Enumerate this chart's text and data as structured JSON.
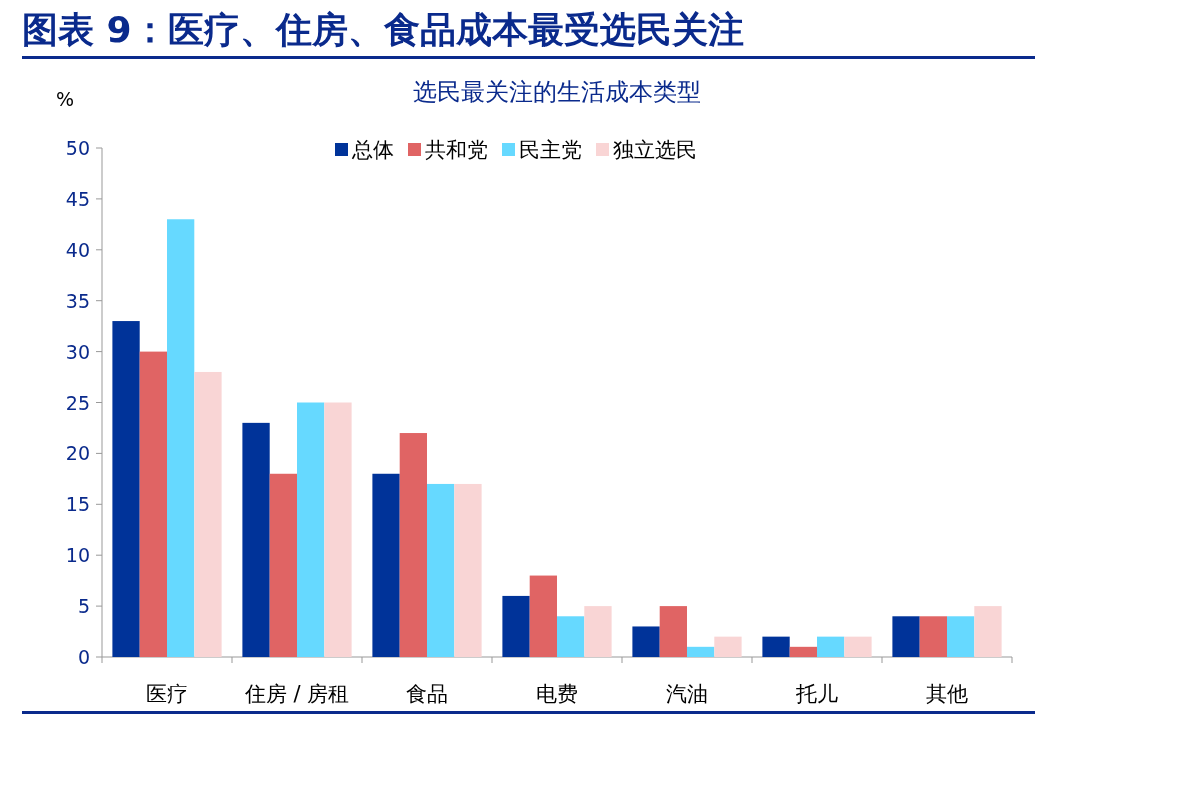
{
  "chart_data": {
    "type": "bar",
    "title": "图表 9：医疗、住房、食品成本最受选民关注",
    "subtitle": "选民最关注的生活成本类型",
    "ylabel": "%",
    "categories": [
      "医疗",
      "住房 / 房租",
      "食品",
      "电费",
      "汽油",
      "托儿",
      "其他"
    ],
    "series": [
      {
        "name": "总体",
        "color": "#003399",
        "values": [
          33,
          23,
          18,
          6,
          3,
          2,
          4
        ]
      },
      {
        "name": "共和党",
        "color": "#e06464",
        "values": [
          30,
          18,
          22,
          8,
          5,
          1,
          4
        ]
      },
      {
        "name": "民主党",
        "color": "#66d9ff",
        "values": [
          43,
          25,
          17,
          4,
          1,
          2,
          4
        ]
      },
      {
        "name": "独立选民",
        "color": "#f9d5d5",
        "values": [
          28,
          25,
          17,
          5,
          2,
          2,
          5
        ]
      }
    ],
    "ylim": [
      0,
      50
    ],
    "yticks": [
      0,
      5,
      10,
      15,
      20,
      25,
      30,
      35,
      40,
      45,
      50
    ],
    "grid": false,
    "legend": "top"
  }
}
